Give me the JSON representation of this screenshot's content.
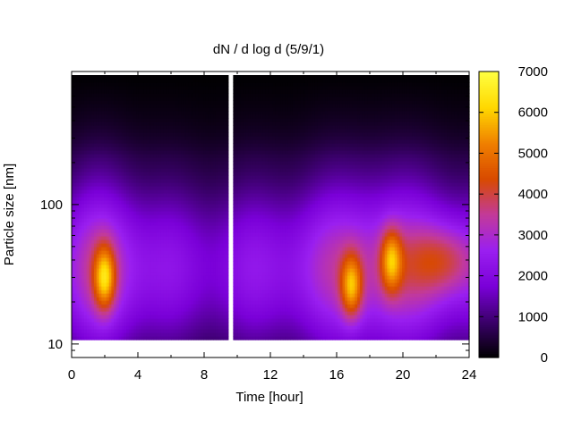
{
  "chart_data": {
    "type": "heatmap",
    "title": "dN / d log d (5/9/1)",
    "xlabel": "Time [hour]",
    "ylabel": "Particle size [nm]",
    "xlim": [
      0,
      24
    ],
    "ylim": [
      8,
      900
    ],
    "y_scale": "log",
    "x_ticks": [
      "0",
      "4",
      "8",
      "12",
      "16",
      "20",
      "24"
    ],
    "y_ticks": [
      "10",
      "100"
    ],
    "colorbar": {
      "range": [
        0,
        7000
      ],
      "ticks": [
        "0",
        "1000",
        "2000",
        "3000",
        "4000",
        "5000",
        "6000",
        "7000"
      ],
      "colormap": [
        "#000000",
        "#3a006a",
        "#7a00d8",
        "#9a1ff0",
        "#c23a9a",
        "#d84a00",
        "#f08000",
        "#ffd800",
        "#ffff40"
      ]
    },
    "features": [
      {
        "time": 2.0,
        "size_nm": 30,
        "peak": 5200
      },
      {
        "time": 16.9,
        "size_nm": 26,
        "peak": 5000
      },
      {
        "time": 19.3,
        "size_nm": 40,
        "peak": 4800
      },
      {
        "time": 22.5,
        "size_nm": 40,
        "peak": 3800
      }
    ],
    "gap_hours": [
      9.4,
      9.8
    ]
  }
}
